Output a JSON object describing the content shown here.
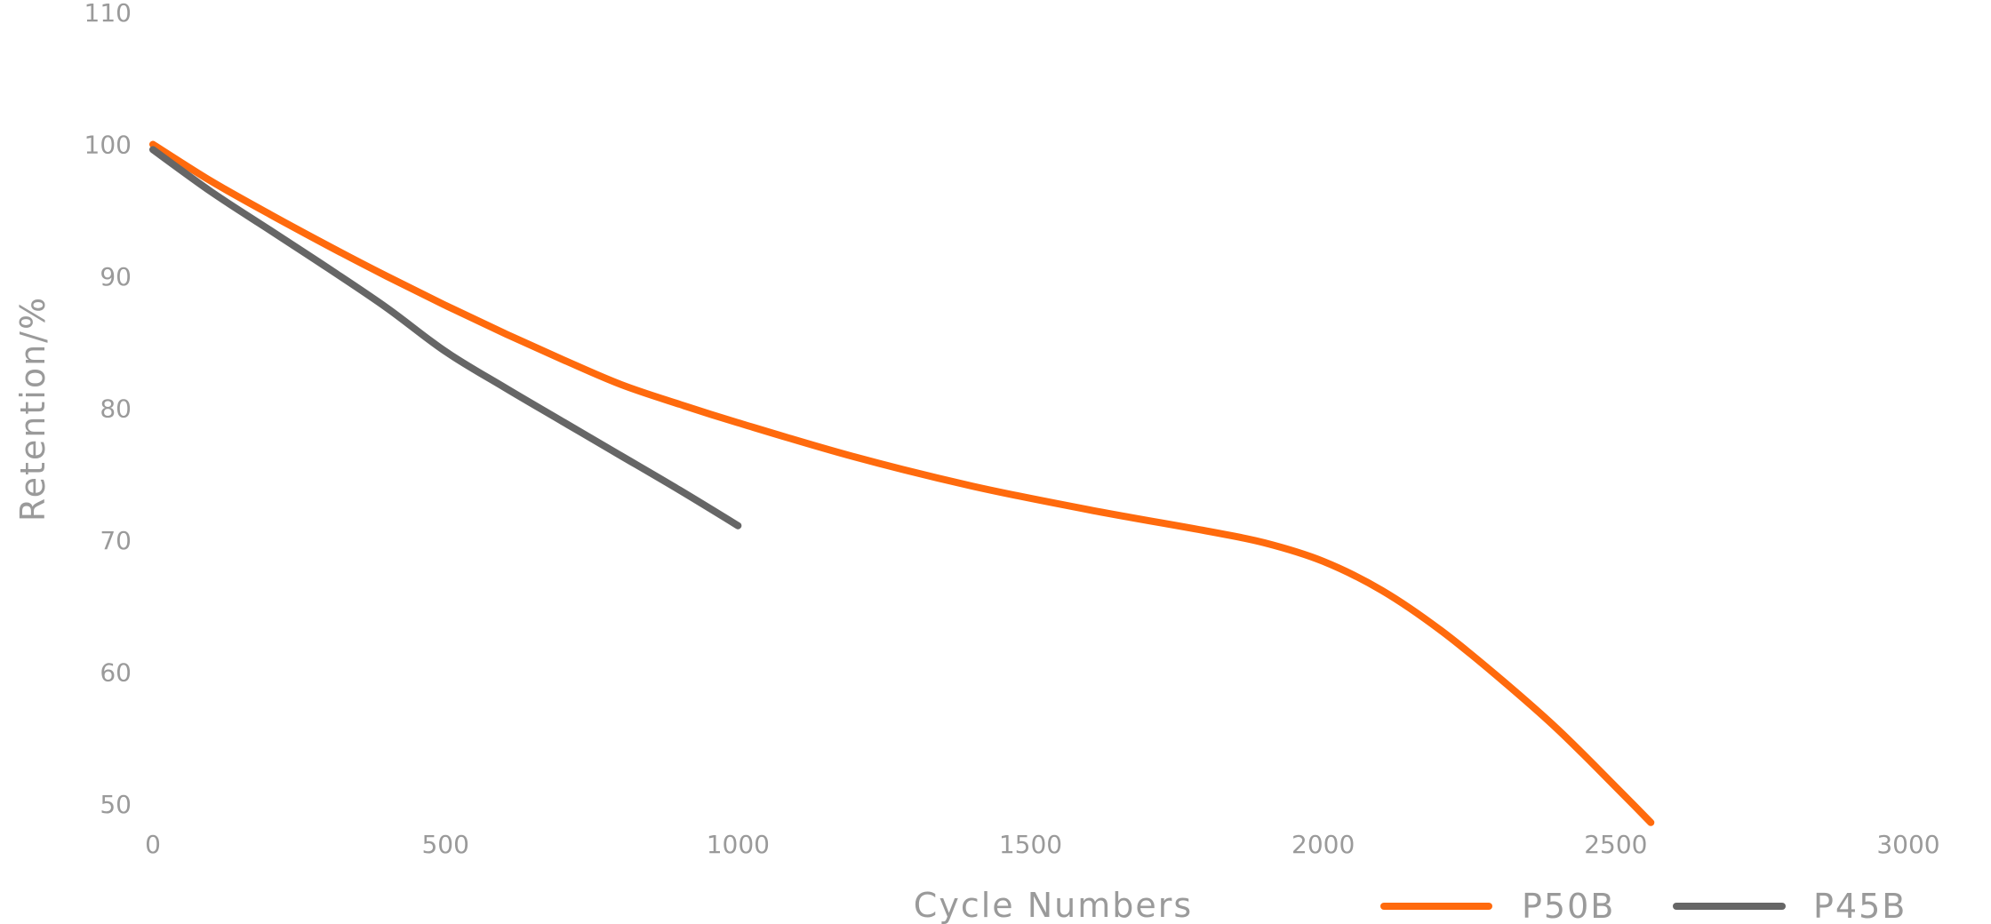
{
  "chart_data": {
    "type": "line",
    "xlabel": "Cycle Numbers",
    "ylabel": "Retention/%",
    "xlim": [
      0,
      3000
    ],
    "ylim": [
      50,
      110
    ],
    "x_ticks": [
      "0",
      "500",
      "1000",
      "1500",
      "2000",
      "2500",
      "3000"
    ],
    "y_ticks": [
      "110",
      "100",
      "90",
      "80",
      "70",
      "60",
      "50"
    ],
    "x_tick_values": [
      0,
      500,
      1000,
      1500,
      2000,
      2500,
      3000
    ],
    "y_tick_values": [
      110,
      100,
      90,
      80,
      70,
      60,
      50
    ],
    "grid": false,
    "legend_position": "bottom-right",
    "series": [
      {
        "name": "P50B",
        "color": "#ff6a0d",
        "x": [
          0,
          100,
          200,
          300,
          400,
          500,
          600,
          700,
          800,
          900,
          1000,
          1200,
          1400,
          1600,
          1800,
          1900,
          2000,
          2100,
          2200,
          2300,
          2400,
          2500,
          2560
        ],
        "y": [
          100,
          97.2,
          94.7,
          92.3,
          90.0,
          87.8,
          85.7,
          83.7,
          81.8,
          80.3,
          78.9,
          76.3,
          74.1,
          72.3,
          70.7,
          69.8,
          68.4,
          66.2,
          63.2,
          59.6,
          55.7,
          51.3,
          48.6
        ]
      },
      {
        "name": "P45B",
        "color": "#666666",
        "x": [
          0,
          100,
          200,
          300,
          400,
          500,
          600,
          700,
          800,
          900,
          1000
        ],
        "y": [
          99.6,
          96.4,
          93.5,
          90.6,
          87.6,
          84.3,
          81.6,
          79.0,
          76.4,
          73.8,
          71.1
        ]
      }
    ]
  }
}
